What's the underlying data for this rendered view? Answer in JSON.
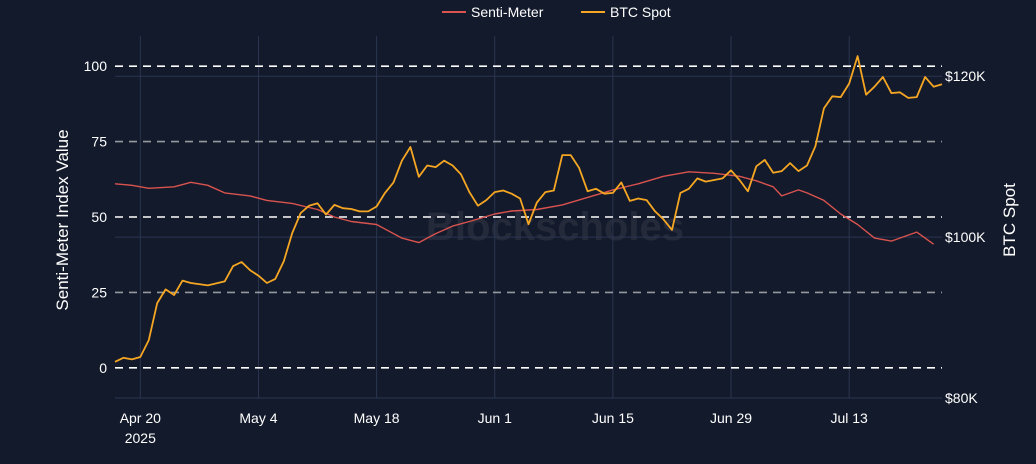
{
  "chart_data": {
    "type": "line",
    "watermark": "Blockscholes",
    "legend": {
      "placement": "top-center",
      "entries": [
        "Senti-Meter",
        "BTC Spot"
      ]
    },
    "colors": {
      "background": "#131a2b",
      "senti": "#d9534f",
      "btc": "#f5a623",
      "grid": "#2a3550",
      "dashed": "#ffffff"
    },
    "x_ticks": [
      {
        "date": "2025-04-20",
        "label": "Apr 20",
        "sublabel": "2025"
      },
      {
        "date": "2025-05-04",
        "label": "May 4",
        "sublabel": ""
      },
      {
        "date": "2025-05-18",
        "label": "May 18",
        "sublabel": ""
      },
      {
        "date": "2025-06-01",
        "label": "Jun 1",
        "sublabel": ""
      },
      {
        "date": "2025-06-15",
        "label": "Jun 15",
        "sublabel": ""
      },
      {
        "date": "2025-06-29",
        "label": "Jun 29",
        "sublabel": ""
      },
      {
        "date": "2025-07-13",
        "label": "Jul 13",
        "sublabel": ""
      }
    ],
    "xlim": [
      "2025-04-17",
      "2025-07-24"
    ],
    "y_left": {
      "label": "Senti-Meter Index Value",
      "range": [
        -10,
        110
      ],
      "ticks": [
        0,
        25,
        50,
        75,
        100
      ],
      "dashed_lines": [
        0,
        25,
        50,
        75,
        100
      ]
    },
    "y_right": {
      "label": "BTC Spot",
      "range": [
        80000,
        125000
      ],
      "ticks": [
        80000,
        100000,
        120000
      ],
      "tick_labels": [
        "$80K",
        "$100K",
        "$120K"
      ]
    },
    "series": [
      {
        "name": "Senti-Meter",
        "axis": "left",
        "color": "#d9534f",
        "points": [
          [
            "2025-04-17",
            61
          ],
          [
            "2025-04-19",
            60.5
          ],
          [
            "2025-04-21",
            59.5
          ],
          [
            "2025-04-24",
            60
          ],
          [
            "2025-04-26",
            61.5
          ],
          [
            "2025-04-28",
            60.5
          ],
          [
            "2025-04-30",
            58
          ],
          [
            "2025-05-03",
            57
          ],
          [
            "2025-05-05",
            55.5
          ],
          [
            "2025-05-08",
            54.5
          ],
          [
            "2025-05-11",
            52.5
          ],
          [
            "2025-05-13",
            50
          ],
          [
            "2025-05-15",
            48.5
          ],
          [
            "2025-05-18",
            47.5
          ],
          [
            "2025-05-21",
            43
          ],
          [
            "2025-05-23",
            41.5
          ],
          [
            "2025-05-25",
            44.5
          ],
          [
            "2025-05-27",
            47
          ],
          [
            "2025-05-29",
            48.5
          ],
          [
            "2025-06-01",
            51
          ],
          [
            "2025-06-03",
            52
          ],
          [
            "2025-06-06",
            52.5
          ],
          [
            "2025-06-09",
            54
          ],
          [
            "2025-06-12",
            56.5
          ],
          [
            "2025-06-15",
            59
          ],
          [
            "2025-06-18",
            61
          ],
          [
            "2025-06-21",
            63.5
          ],
          [
            "2025-06-24",
            65
          ],
          [
            "2025-06-27",
            64.5
          ],
          [
            "2025-06-30",
            63.5
          ],
          [
            "2025-07-02",
            62
          ],
          [
            "2025-07-04",
            60
          ],
          [
            "2025-07-05",
            57
          ],
          [
            "2025-07-07",
            59
          ],
          [
            "2025-07-08",
            58
          ],
          [
            "2025-07-10",
            55.5
          ],
          [
            "2025-07-12",
            51
          ],
          [
            "2025-07-14",
            47.5
          ],
          [
            "2025-07-16",
            43
          ],
          [
            "2025-07-18",
            42
          ],
          [
            "2025-07-19",
            43
          ],
          [
            "2025-07-21",
            45
          ],
          [
            "2025-07-22",
            43
          ],
          [
            "2025-07-23",
            41
          ]
        ]
      },
      {
        "name": "BTC Spot",
        "axis": "right",
        "color": "#f5a623",
        "points": [
          [
            "2025-04-17",
            84500
          ],
          [
            "2025-04-18",
            85000
          ],
          [
            "2025-04-19",
            84800
          ],
          [
            "2025-04-20",
            85100
          ],
          [
            "2025-04-21",
            87200
          ],
          [
            "2025-04-22",
            91800
          ],
          [
            "2025-04-23",
            93500
          ],
          [
            "2025-04-24",
            92800
          ],
          [
            "2025-04-25",
            94600
          ],
          [
            "2025-04-26",
            94300
          ],
          [
            "2025-04-28",
            94000
          ],
          [
            "2025-04-30",
            94500
          ],
          [
            "2025-05-01",
            96400
          ],
          [
            "2025-05-02",
            96900
          ],
          [
            "2025-05-03",
            95900
          ],
          [
            "2025-05-04",
            95200
          ],
          [
            "2025-05-05",
            94300
          ],
          [
            "2025-05-06",
            94800
          ],
          [
            "2025-05-07",
            97000
          ],
          [
            "2025-05-08",
            100500
          ],
          [
            "2025-05-09",
            103000
          ],
          [
            "2025-05-10",
            103900
          ],
          [
            "2025-05-11",
            104200
          ],
          [
            "2025-05-12",
            102800
          ],
          [
            "2025-05-13",
            104000
          ],
          [
            "2025-05-14",
            103600
          ],
          [
            "2025-05-15",
            103500
          ],
          [
            "2025-05-16",
            103200
          ],
          [
            "2025-05-17",
            103200
          ],
          [
            "2025-05-18",
            103800
          ],
          [
            "2025-05-19",
            105500
          ],
          [
            "2025-05-20",
            106800
          ],
          [
            "2025-05-21",
            109500
          ],
          [
            "2025-05-22",
            111200
          ],
          [
            "2025-05-23",
            107500
          ],
          [
            "2025-05-24",
            108900
          ],
          [
            "2025-05-25",
            108700
          ],
          [
            "2025-05-26",
            109500
          ],
          [
            "2025-05-27",
            108900
          ],
          [
            "2025-05-28",
            107800
          ],
          [
            "2025-05-29",
            105600
          ],
          [
            "2025-05-30",
            103900
          ],
          [
            "2025-05-31",
            104600
          ],
          [
            "2025-06-01",
            105600
          ],
          [
            "2025-06-02",
            105800
          ],
          [
            "2025-06-03",
            105400
          ],
          [
            "2025-06-04",
            104800
          ],
          [
            "2025-06-05",
            101600
          ],
          [
            "2025-06-06",
            104300
          ],
          [
            "2025-06-07",
            105600
          ],
          [
            "2025-06-08",
            105800
          ],
          [
            "2025-06-09",
            110200
          ],
          [
            "2025-06-10",
            110200
          ],
          [
            "2025-06-11",
            108600
          ],
          [
            "2025-06-12",
            105700
          ],
          [
            "2025-06-13",
            106000
          ],
          [
            "2025-06-14",
            105400
          ],
          [
            "2025-06-15",
            105500
          ],
          [
            "2025-06-16",
            106800
          ],
          [
            "2025-06-17",
            104500
          ],
          [
            "2025-06-18",
            104800
          ],
          [
            "2025-06-19",
            104600
          ],
          [
            "2025-06-20",
            103200
          ],
          [
            "2025-06-21",
            102200
          ],
          [
            "2025-06-22",
            100900
          ],
          [
            "2025-06-23",
            105500
          ],
          [
            "2025-06-24",
            106000
          ],
          [
            "2025-06-25",
            107300
          ],
          [
            "2025-06-26",
            106900
          ],
          [
            "2025-06-27",
            107100
          ],
          [
            "2025-06-28",
            107300
          ],
          [
            "2025-06-29",
            108300
          ],
          [
            "2025-06-30",
            107100
          ],
          [
            "2025-07-01",
            105700
          ],
          [
            "2025-07-02",
            108800
          ],
          [
            "2025-07-03",
            109600
          ],
          [
            "2025-07-04",
            108000
          ],
          [
            "2025-07-05",
            108200
          ],
          [
            "2025-07-06",
            109200
          ],
          [
            "2025-07-07",
            108200
          ],
          [
            "2025-07-08",
            108900
          ],
          [
            "2025-07-09",
            111300
          ],
          [
            "2025-07-10",
            116000
          ],
          [
            "2025-07-11",
            117500
          ],
          [
            "2025-07-12",
            117400
          ],
          [
            "2025-07-13",
            119100
          ],
          [
            "2025-07-14",
            122500
          ],
          [
            "2025-07-15",
            117700
          ],
          [
            "2025-07-16",
            118700
          ],
          [
            "2025-07-17",
            119900
          ],
          [
            "2025-07-18",
            117900
          ],
          [
            "2025-07-19",
            118000
          ],
          [
            "2025-07-20",
            117300
          ],
          [
            "2025-07-21",
            117400
          ],
          [
            "2025-07-22",
            119900
          ],
          [
            "2025-07-23",
            118700
          ],
          [
            "2025-07-24",
            119000
          ]
        ]
      }
    ]
  }
}
